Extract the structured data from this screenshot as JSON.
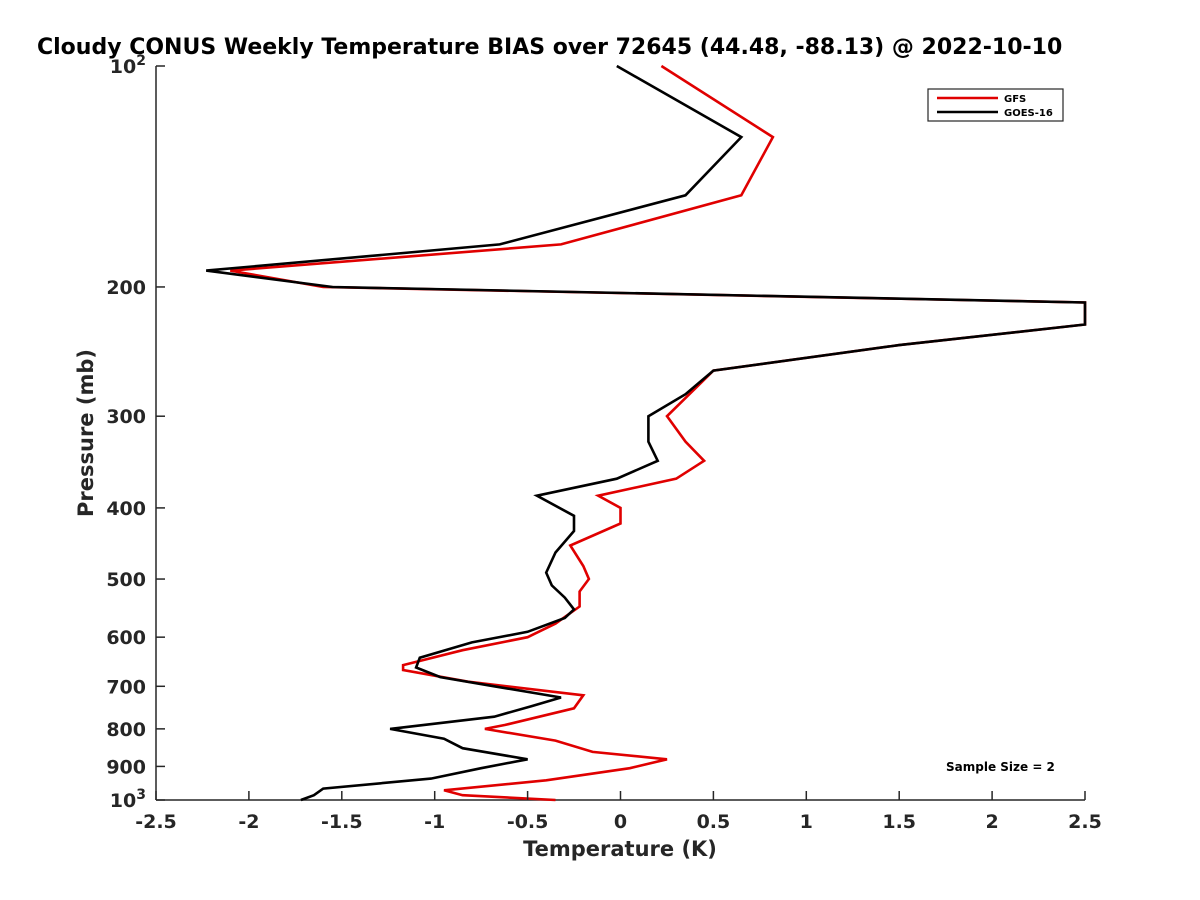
{
  "chart_data": {
    "type": "line",
    "title": "Cloudy CONUS Weekly Temperature BIAS over 72645 (44.48, -88.13) @ 2022-10-10",
    "xlabel": "Temperature (K)",
    "ylabel": "Pressure (mb)",
    "xlim": [
      -2.5,
      2.5
    ],
    "ylim": [
      100,
      1000
    ],
    "y_scale": "log",
    "y_reversed": true,
    "grid": false,
    "legend_position": "top-right",
    "x_ticks": [
      {
        "value": -2.5,
        "label": "-2.5"
      },
      {
        "value": -2,
        "label": "-2"
      },
      {
        "value": -1.5,
        "label": "-1.5"
      },
      {
        "value": -1,
        "label": "-1"
      },
      {
        "value": -0.5,
        "label": "-0.5"
      },
      {
        "value": 0,
        "label": "0"
      },
      {
        "value": 0.5,
        "label": "0.5"
      },
      {
        "value": 1,
        "label": "1"
      },
      {
        "value": 1.5,
        "label": "1.5"
      },
      {
        "value": 2,
        "label": "2"
      },
      {
        "value": 2.5,
        "label": "2.5"
      }
    ],
    "y_ticks": [
      {
        "value": 100,
        "label": "10",
        "exp": "2"
      },
      {
        "value": 200,
        "label": "200"
      },
      {
        "value": 300,
        "label": "300"
      },
      {
        "value": 400,
        "label": "400"
      },
      {
        "value": 500,
        "label": "500"
      },
      {
        "value": 600,
        "label": "600"
      },
      {
        "value": 700,
        "label": "700"
      },
      {
        "value": 800,
        "label": "800"
      },
      {
        "value": 900,
        "label": "900"
      },
      {
        "value": 1000,
        "label": "10",
        "exp": "3"
      }
    ],
    "series": [
      {
        "name": "GFS",
        "color": "#e00000",
        "points": [
          [
            0.22,
            100
          ],
          [
            0.82,
            125
          ],
          [
            0.65,
            150
          ],
          [
            -0.32,
            175
          ],
          [
            -2.1,
            190
          ],
          [
            -1.6,
            200
          ],
          [
            2.5,
            210
          ],
          [
            2.5,
            225
          ],
          [
            1.5,
            240
          ],
          [
            0.5,
            260
          ],
          [
            0.25,
            300
          ],
          [
            0.35,
            325
          ],
          [
            0.45,
            345
          ],
          [
            0.3,
            365
          ],
          [
            -0.12,
            385
          ],
          [
            0.0,
            400
          ],
          [
            0.0,
            420
          ],
          [
            -0.27,
            450
          ],
          [
            -0.2,
            480
          ],
          [
            -0.17,
            500
          ],
          [
            -0.22,
            520
          ],
          [
            -0.22,
            545
          ],
          [
            -0.35,
            575
          ],
          [
            -0.5,
            600
          ],
          [
            -0.85,
            625
          ],
          [
            -1.17,
            655
          ],
          [
            -1.17,
            665
          ],
          [
            -0.82,
            690
          ],
          [
            -0.2,
            720
          ],
          [
            -0.25,
            750
          ],
          [
            -0.62,
            790
          ],
          [
            -0.73,
            800
          ],
          [
            -0.35,
            830
          ],
          [
            -0.15,
            860
          ],
          [
            0.25,
            880
          ],
          [
            0.05,
            905
          ],
          [
            -0.4,
            940
          ],
          [
            -0.95,
            970
          ],
          [
            -0.85,
            985
          ],
          [
            -0.35,
            1000
          ]
        ]
      },
      {
        "name": "GOES-16",
        "color": "#000000",
        "points": [
          [
            -0.02,
            100
          ],
          [
            0.65,
            125
          ],
          [
            0.35,
            150
          ],
          [
            -0.65,
            175
          ],
          [
            -2.23,
            190
          ],
          [
            -1.55,
            200
          ],
          [
            2.5,
            210
          ],
          [
            2.5,
            225
          ],
          [
            1.5,
            240
          ],
          [
            0.5,
            260
          ],
          [
            0.35,
            280
          ],
          [
            0.15,
            300
          ],
          [
            0.15,
            325
          ],
          [
            0.2,
            345
          ],
          [
            -0.02,
            365
          ],
          [
            -0.45,
            385
          ],
          [
            -0.25,
            410
          ],
          [
            -0.25,
            430
          ],
          [
            -0.35,
            460
          ],
          [
            -0.4,
            490
          ],
          [
            -0.37,
            510
          ],
          [
            -0.3,
            530
          ],
          [
            -0.25,
            550
          ],
          [
            -0.3,
            565
          ],
          [
            -0.5,
            590
          ],
          [
            -0.8,
            610
          ],
          [
            -1.08,
            640
          ],
          [
            -1.1,
            660
          ],
          [
            -0.97,
            680
          ],
          [
            -0.68,
            700
          ],
          [
            -0.32,
            725
          ],
          [
            -0.48,
            745
          ],
          [
            -0.68,
            770
          ],
          [
            -1.24,
            800
          ],
          [
            -0.95,
            825
          ],
          [
            -0.85,
            850
          ],
          [
            -0.5,
            880
          ],
          [
            -0.75,
            905
          ],
          [
            -1.02,
            935
          ],
          [
            -1.6,
            965
          ],
          [
            -1.65,
            985
          ],
          [
            -1.72,
            1000
          ]
        ]
      }
    ],
    "annotations": [
      {
        "text": "Sample Size = 2",
        "position": "bottom-right"
      }
    ]
  }
}
